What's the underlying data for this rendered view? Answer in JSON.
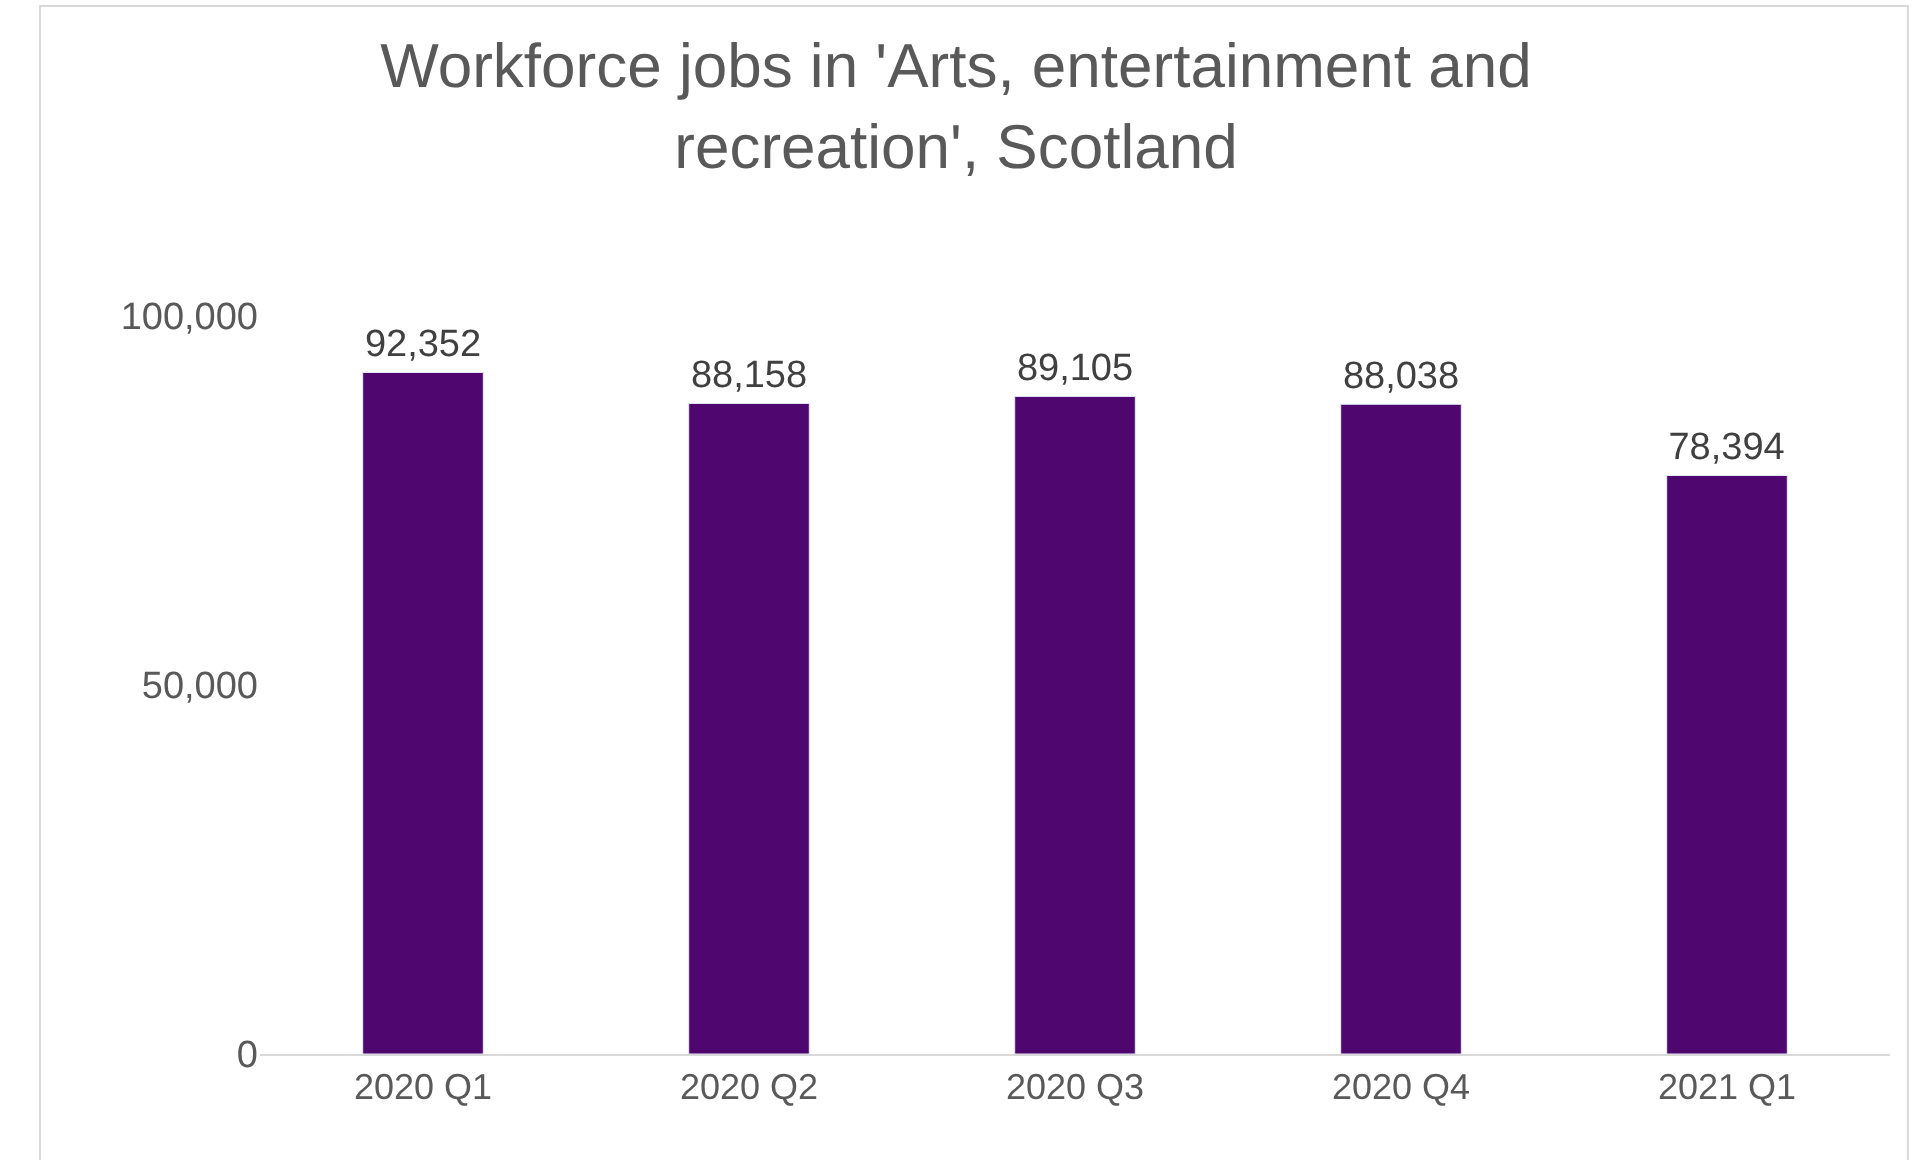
{
  "chart_data": {
    "type": "bar",
    "title": "Workforce jobs in 'Arts, entertainment and recreation', Scotland",
    "categories": [
      "2020 Q1",
      "2020 Q2",
      "2020 Q3",
      "2020 Q4",
      "2021 Q1"
    ],
    "values": [
      92352,
      88158,
      89105,
      88038,
      78394
    ],
    "color": "#4f076f",
    "ylim": [
      0,
      100000
    ],
    "yticks": [
      {
        "value": 0,
        "label": "0"
      },
      {
        "value": 50000,
        "label": "50,000"
      },
      {
        "value": 100000,
        "label": "100,000"
      }
    ],
    "value_labels": [
      "92,352",
      "88,158",
      "89,105",
      "88,038",
      "78,394"
    ]
  }
}
